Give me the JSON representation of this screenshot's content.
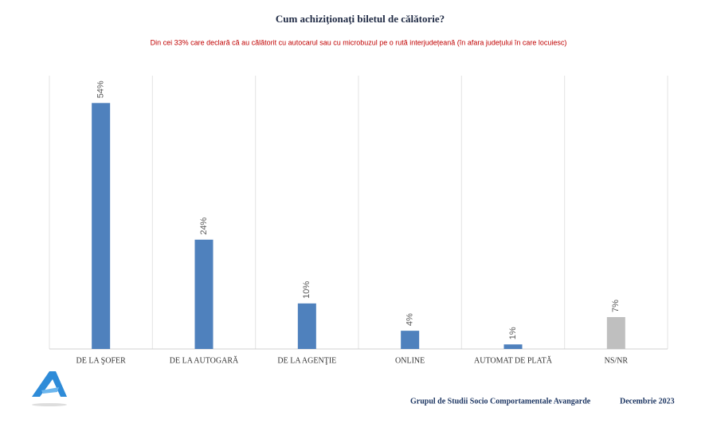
{
  "chart_data": {
    "type": "bar",
    "title": "Cum achiziţionaţi biletul de călătorie?",
    "subtitle": "Din cei 33% care declară că au călătorit cu autocarul sau cu microbuzul pe o rută interjudețeană (în afara județului în care locuiesc)",
    "categories": [
      "DE LA ŞOFER",
      "DE LA AUTOGARĂ",
      "DE LA AGENŢIE",
      "ONLINE",
      "AUTOMAT DE PLATĂ",
      "NS/NR"
    ],
    "values": [
      54,
      24,
      10,
      4,
      1,
      7
    ],
    "value_labels": [
      "54%",
      "24%",
      "10%",
      "4%",
      "1%",
      "7%"
    ],
    "colors": [
      "#4f81bd",
      "#4f81bd",
      "#4f81bd",
      "#4f81bd",
      "#4f81bd",
      "#bfbfbf"
    ],
    "ylim": [
      0,
      60
    ],
    "grid": true,
    "footer": "Grupul de Studii Socio Comportamentale Avangarde",
    "date": "Decembrie 2023"
  }
}
